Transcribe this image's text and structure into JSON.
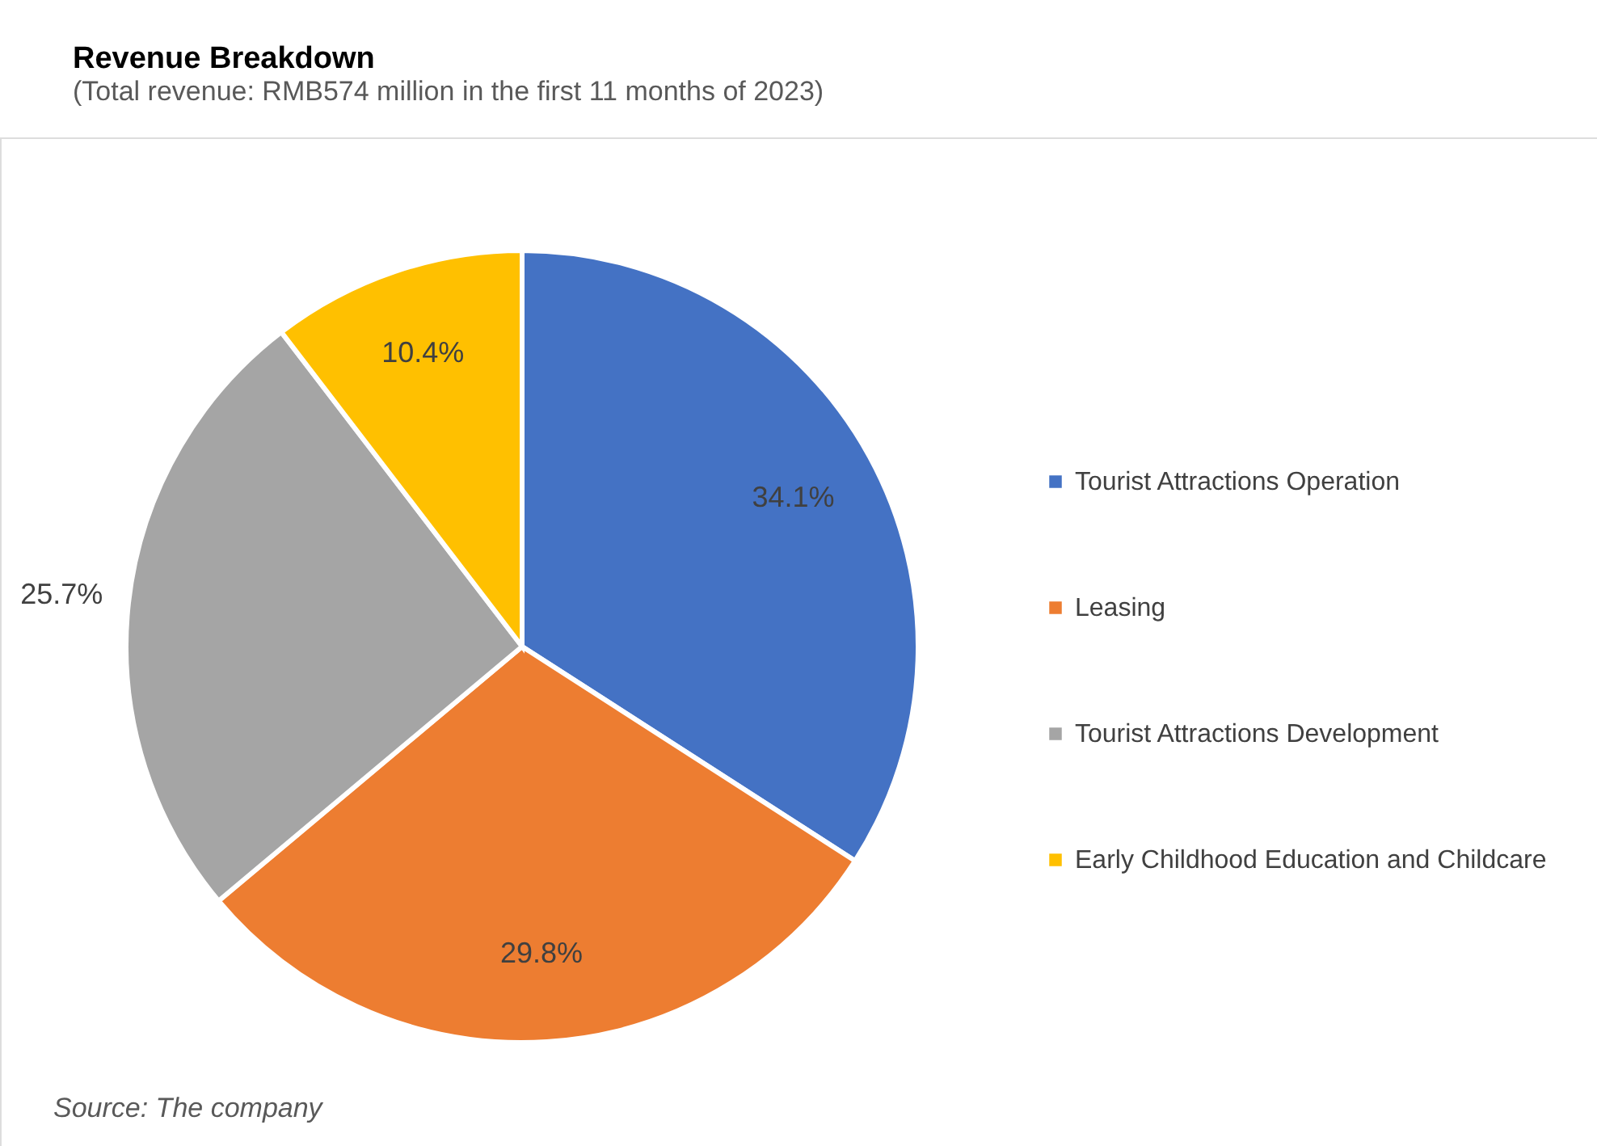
{
  "chart_data": {
    "type": "pie",
    "title": "Revenue Breakdown",
    "subtitle": "(Total revenue: RMB574 million in the first 11 months of 2023)",
    "categories": [
      "Tourist Attractions Operation",
      "Leasing",
      "Tourist Attractions Development",
      "Early Childhood Education and Childcare"
    ],
    "values": [
      34.1,
      29.8,
      25.7,
      10.4
    ],
    "colors": [
      "#4472c4",
      "#ed7d31",
      "#a5a5a5",
      "#ffc000"
    ],
    "value_labels": [
      "34.1%",
      "29.8%",
      "25.7%",
      "10.4%"
    ],
    "legend": "right",
    "annotations": [
      "Source: The company"
    ]
  }
}
